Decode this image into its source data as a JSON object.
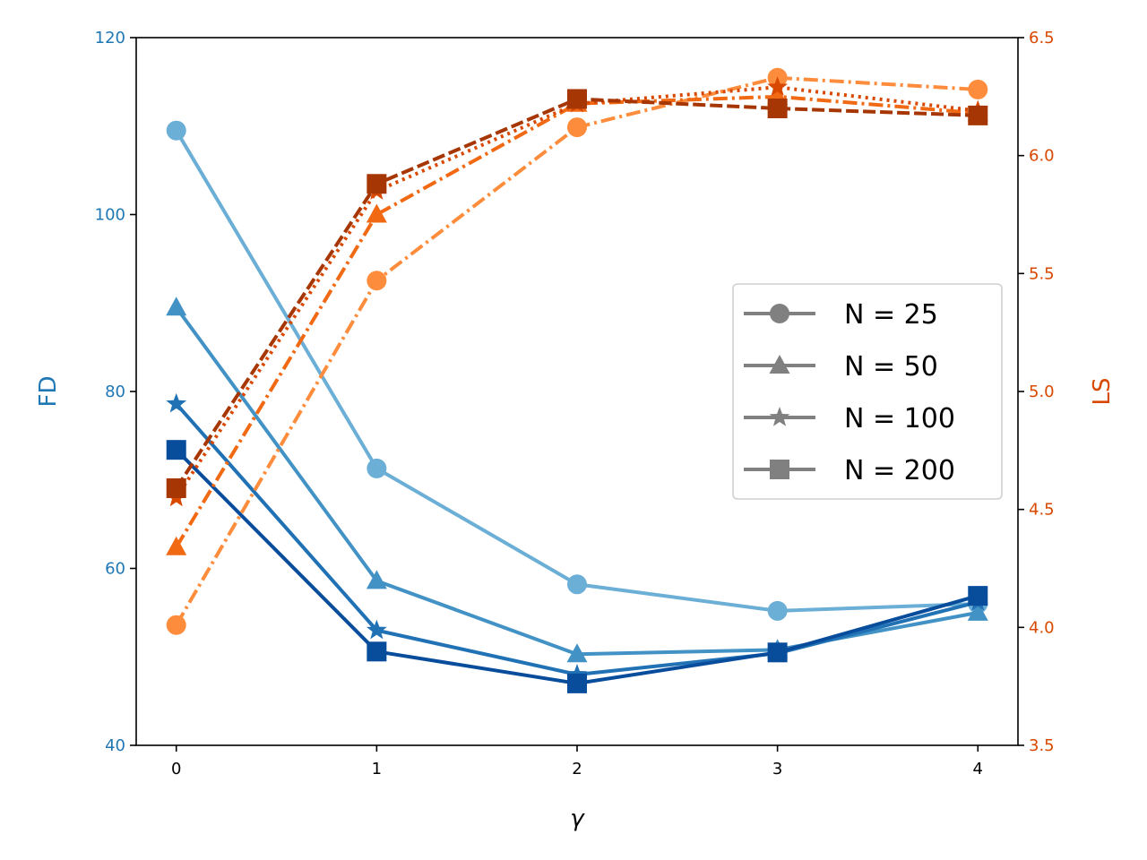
{
  "chart_data": {
    "type": "line",
    "x": [
      0,
      1,
      2,
      3,
      4
    ],
    "xlabel": "γ",
    "xlim": [
      -0.2,
      4.2
    ],
    "x_ticks": [
      "0",
      "1",
      "2",
      "3",
      "4"
    ],
    "left_axis": {
      "label": "FD",
      "ylim": [
        40,
        120
      ],
      "ticks": [
        "40",
        "60",
        "80",
        "100",
        "120"
      ],
      "tick_values": [
        40,
        60,
        80,
        100,
        120
      ],
      "color": "#1f77b4"
    },
    "right_axis": {
      "label": "LS",
      "ylim": [
        3.5,
        6.5
      ],
      "ticks": [
        "3.5",
        "4.0",
        "4.5",
        "5.0",
        "5.5",
        "6.0",
        "6.5"
      ],
      "tick_values": [
        3.5,
        4.0,
        4.5,
        5.0,
        5.5,
        6.0,
        6.5
      ],
      "color": "#d94801"
    },
    "series": [
      {
        "name": "FD N = 25",
        "axis": "left",
        "marker": "circle",
        "style": "solid",
        "color": "#6baed6",
        "values": [
          109.5,
          71.3,
          58.2,
          55.2,
          56.0
        ]
      },
      {
        "name": "FD N = 50",
        "axis": "left",
        "marker": "triangle",
        "style": "solid",
        "color": "#4292c6",
        "values": [
          89.5,
          58.6,
          50.3,
          50.8,
          55.0
        ]
      },
      {
        "name": "FD N = 100",
        "axis": "left",
        "marker": "star",
        "style": "solid",
        "color": "#2171b5",
        "values": [
          78.6,
          53.0,
          48.0,
          50.4,
          56.2
        ]
      },
      {
        "name": "FD N = 200",
        "axis": "left",
        "marker": "square",
        "style": "solid",
        "color": "#084c9c",
        "values": [
          73.4,
          50.6,
          47.0,
          50.5,
          56.9
        ]
      },
      {
        "name": "LS N = 25",
        "axis": "right",
        "marker": "circle",
        "style": "dashdot",
        "color": "#fd8d3c",
        "values": [
          4.01,
          5.47,
          6.12,
          6.33,
          6.28
        ]
      },
      {
        "name": "LS N = 50",
        "axis": "right",
        "marker": "triangle",
        "style": "dashdot",
        "color": "#f16913",
        "values": [
          4.34,
          5.75,
          6.22,
          6.25,
          6.18
        ]
      },
      {
        "name": "LS N = 100",
        "axis": "right",
        "marker": "star",
        "style": "dotted",
        "color": "#d94801",
        "values": [
          4.55,
          5.85,
          6.22,
          6.29,
          6.19
        ]
      },
      {
        "name": "LS N = 200",
        "axis": "right",
        "marker": "square",
        "style": "dashed",
        "color": "#a63603",
        "values": [
          4.59,
          5.88,
          6.24,
          6.2,
          6.17
        ]
      }
    ],
    "legend": {
      "placement": "center-right",
      "entries": [
        {
          "label": "N = 25",
          "marker": "circle"
        },
        {
          "label": "N = 50",
          "marker": "triangle"
        },
        {
          "label": "N = 100",
          "marker": "star"
        },
        {
          "label": "N = 200",
          "marker": "square"
        }
      ],
      "color": "#808080"
    }
  }
}
